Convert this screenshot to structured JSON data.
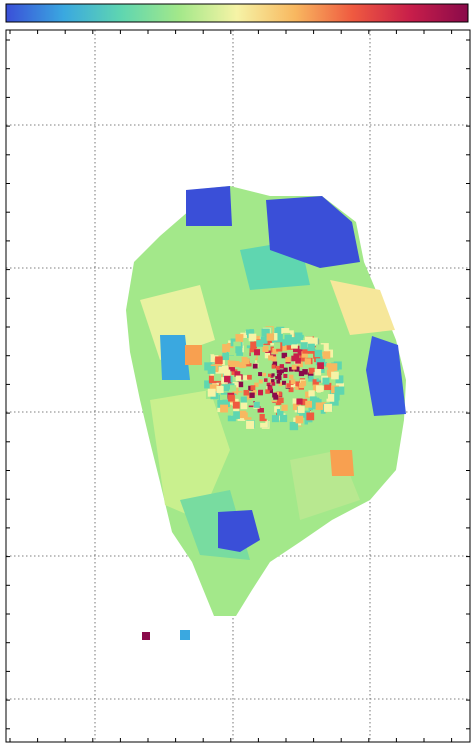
{
  "chart_data": {
    "type": "voronoi-map",
    "colormap": [
      "#3a4fd8",
      "#3aa8e0",
      "#5fd6b0",
      "#a3e88a",
      "#f6f3a6",
      "#f8b860",
      "#ef5a40",
      "#c81e4a",
      "#8a0a4a"
    ],
    "grid": true
  }
}
